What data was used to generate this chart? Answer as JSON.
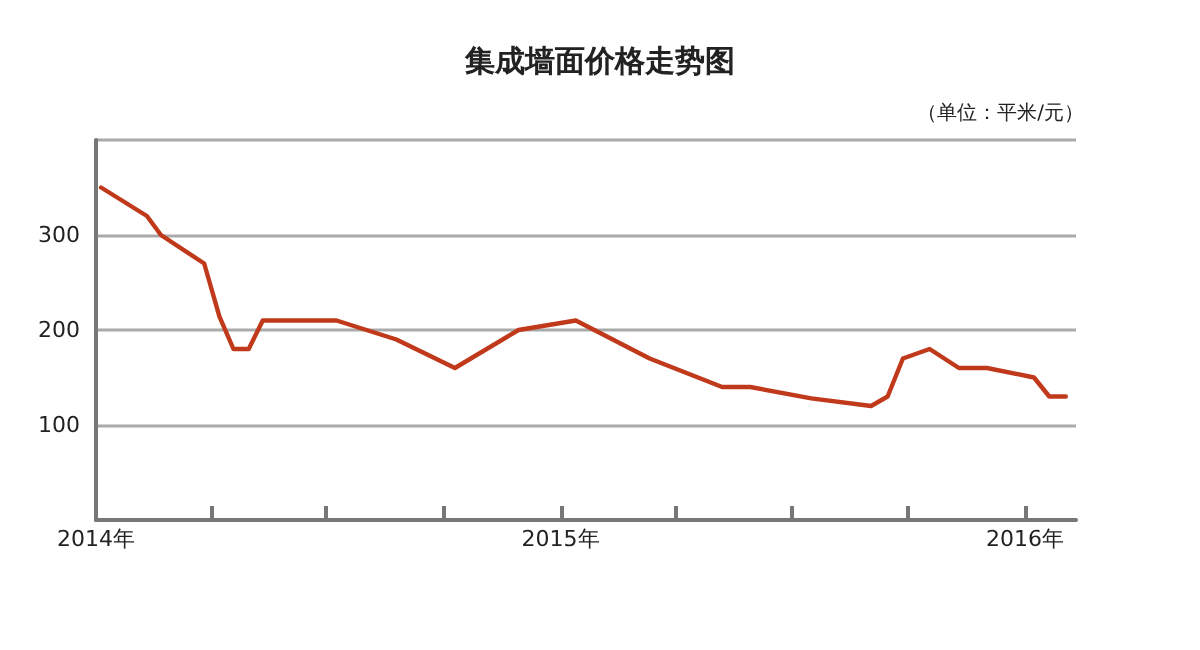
{
  "chart_data": {
    "type": "line",
    "title": "集成墙面价格走势图",
    "annotations": [
      "（单位：平米/元）"
    ],
    "x": [
      "2014-01-05",
      "2014-02-10",
      "2014-02-21",
      "2014-03-27",
      "2014-04-08",
      "2014-04-19",
      "2014-05-01",
      "2014-05-12",
      "2014-07-09",
      "2014-08-25",
      "2014-10-10",
      "2014-11-29",
      "2015-01-13",
      "2015-03-12",
      "2015-05-08",
      "2015-05-30",
      "2015-07-17",
      "2015-09-02",
      "2015-09-15",
      "2015-09-27",
      "2015-10-18",
      "2015-11-10",
      "2015-12-02",
      "2016-01-08",
      "2016-01-20",
      "2016-02-02"
    ],
    "series": [
      {
        "color": "#c0391b",
        "values": [
          350,
          320,
          300,
          270,
          214,
          180,
          180,
          210,
          210,
          190,
          160,
          200,
          210,
          170,
          140,
          140,
          128,
          120,
          130,
          170,
          180,
          160,
          160,
          150,
          130,
          130
        ]
      }
    ],
    "xlim": [
      "2014-01-01",
      "2016-02-10"
    ],
    "xticks": [
      {
        "value": "2014-01-01",
        "label": "2014年"
      },
      {
        "value": "2014-04-01",
        "label": null
      },
      {
        "value": "2014-07-01",
        "label": null
      },
      {
        "value": "2014-10-01",
        "label": null
      },
      {
        "value": "2015-01-01",
        "label": "2015年"
      },
      {
        "value": "2015-04-01",
        "label": null
      },
      {
        "value": "2015-07-01",
        "label": null
      },
      {
        "value": "2015-10-01",
        "label": null
      },
      {
        "value": "2016-01-01",
        "label": "2016年"
      }
    ],
    "ylim": [
      0,
      400
    ],
    "yticks": [
      {
        "value": 0,
        "label": null
      },
      100,
      200,
      300,
      {
        "value": 400,
        "label": null
      }
    ],
    "grid": "y",
    "marker": "none",
    "line_style": "solid"
  }
}
